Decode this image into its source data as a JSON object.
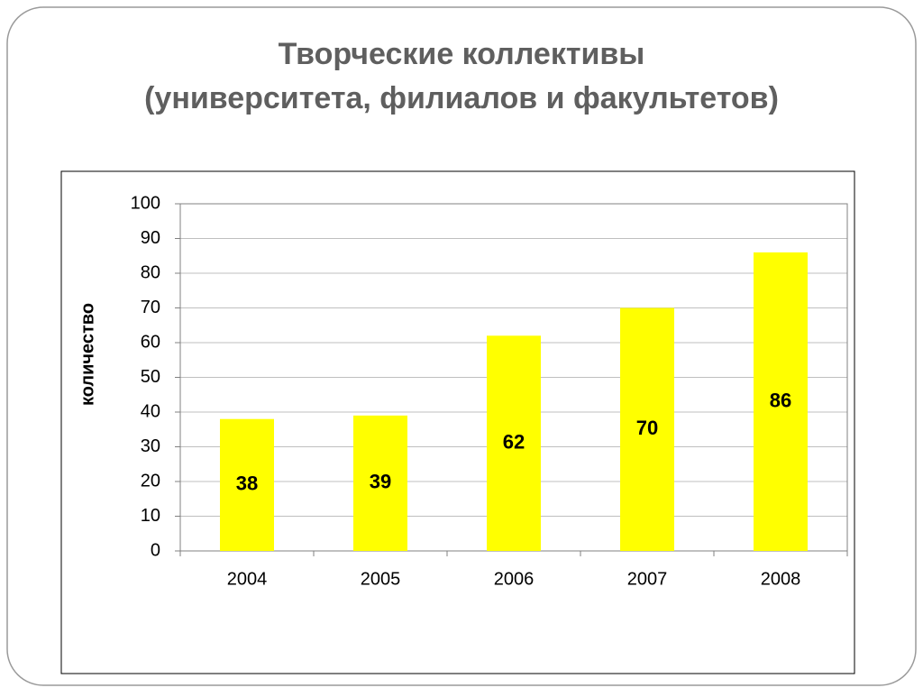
{
  "title_lines": [
    "Творческие коллективы",
    "(университета, филиалов и факультетов)"
  ],
  "chart_data": {
    "type": "bar",
    "ylabel": "количество",
    "categories": [
      "2004",
      "2005",
      "2006",
      "2007",
      "2008"
    ],
    "values": [
      38,
      39,
      62,
      70,
      86
    ],
    "color": "#ffff00",
    "ylim": [
      0,
      100
    ],
    "yticks": [
      0,
      10,
      20,
      30,
      40,
      50,
      60,
      70,
      80,
      90,
      100
    ],
    "grid": true
  }
}
